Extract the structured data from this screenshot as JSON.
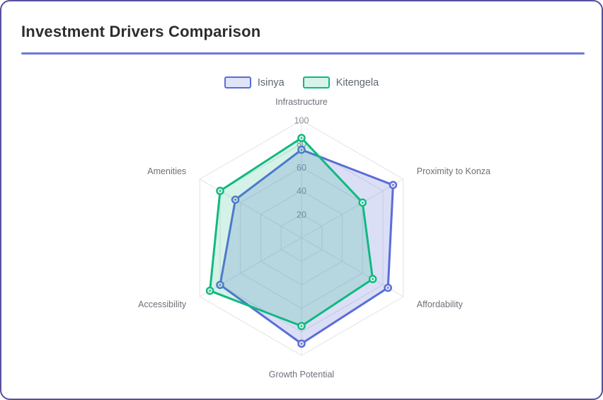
{
  "card": {
    "title": "Investment Drivers Comparison"
  },
  "theme": {
    "card_border": "#5650A0",
    "divider": "#6C79D9",
    "title_color": "#2D2D2D",
    "grid_color": "#E2E2E8",
    "axis_name_color": "#6E7079",
    "tick_label_color": "#8A8F99",
    "legend_text_color": "#5F6670"
  },
  "chart_data": {
    "type": "radar",
    "title": "Investment Drivers Comparison",
    "grid": "hexagonal",
    "legend_position": "top-center",
    "categories": [
      "Infrastructure",
      "Proximity to Konza",
      "Affordability",
      "Growth Potential",
      "Accessibility",
      "Amenities"
    ],
    "axis_min": 0,
    "axis_max": 100,
    "tick_interval": 20,
    "ticks": [
      20,
      40,
      60,
      80,
      100
    ],
    "series": [
      {
        "name": "Isinya",
        "color": "#5B6DD8",
        "fill": "rgba(91,109,216,0.22)",
        "swatch_fill": "#DFE4F9",
        "values": [
          75,
          90,
          85,
          90,
          80,
          65
        ]
      },
      {
        "name": "Kitengela",
        "color": "#10B981",
        "fill": "rgba(16,185,129,0.18)",
        "swatch_fill": "#D8F3E8",
        "values": [
          85,
          60,
          70,
          75,
          90,
          80
        ]
      }
    ]
  }
}
